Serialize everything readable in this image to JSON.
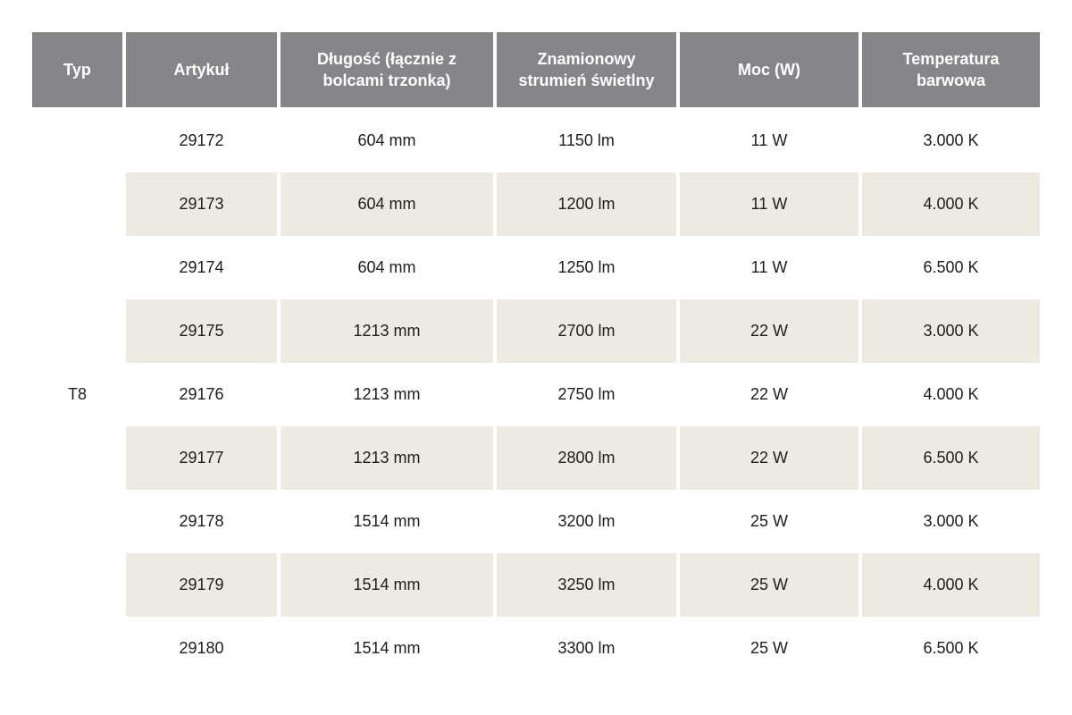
{
  "table": {
    "columns": [
      {
        "label": "Typ"
      },
      {
        "label": "Artykuł"
      },
      {
        "label": "Długość (łącznie z bolcami trzonka)"
      },
      {
        "label": "Znamionowy strumień świetlny"
      },
      {
        "label": "Moc (W)"
      },
      {
        "label": "Temperatura barwowa"
      }
    ],
    "typ_group": "T8",
    "rows": [
      {
        "artykul": "29172",
        "dlugosc": "604 mm",
        "strumien": "1150 lm",
        "moc": "11 W",
        "temperatura": "3.000 K"
      },
      {
        "artykul": "29173",
        "dlugosc": "604 mm",
        "strumien": "1200 lm",
        "moc": "11 W",
        "temperatura": "4.000 K"
      },
      {
        "artykul": "29174",
        "dlugosc": "604 mm",
        "strumien": "1250 lm",
        "moc": "11 W",
        "temperatura": "6.500 K"
      },
      {
        "artykul": "29175",
        "dlugosc": "1213 mm",
        "strumien": "2700 lm",
        "moc": "22 W",
        "temperatura": "3.000 K"
      },
      {
        "artykul": "29176",
        "dlugosc": "1213 mm",
        "strumien": "2750 lm",
        "moc": "22 W",
        "temperatura": "4.000 K"
      },
      {
        "artykul": "29177",
        "dlugosc": "1213 mm",
        "strumien": "2800 lm",
        "moc": "22 W",
        "temperatura": "6.500 K"
      },
      {
        "artykul": "29178",
        "dlugosc": "1514 mm",
        "strumien": "3200 lm",
        "moc": "25 W",
        "temperatura": "3.000 K"
      },
      {
        "artykul": "29179",
        "dlugosc": "1514 mm",
        "strumien": "3250 lm",
        "moc": "25 W",
        "temperatura": "4.000 K"
      },
      {
        "artykul": "29180",
        "dlugosc": "1514 mm",
        "strumien": "3300 lm",
        "moc": "25 W",
        "temperatura": "6.500 K"
      }
    ]
  },
  "colors": {
    "header_bg": "#86868a",
    "header_text": "#ffffff",
    "row_bg": "#ffffff",
    "row_alt_bg": "#edeae2",
    "text": "#1d1d1b"
  }
}
